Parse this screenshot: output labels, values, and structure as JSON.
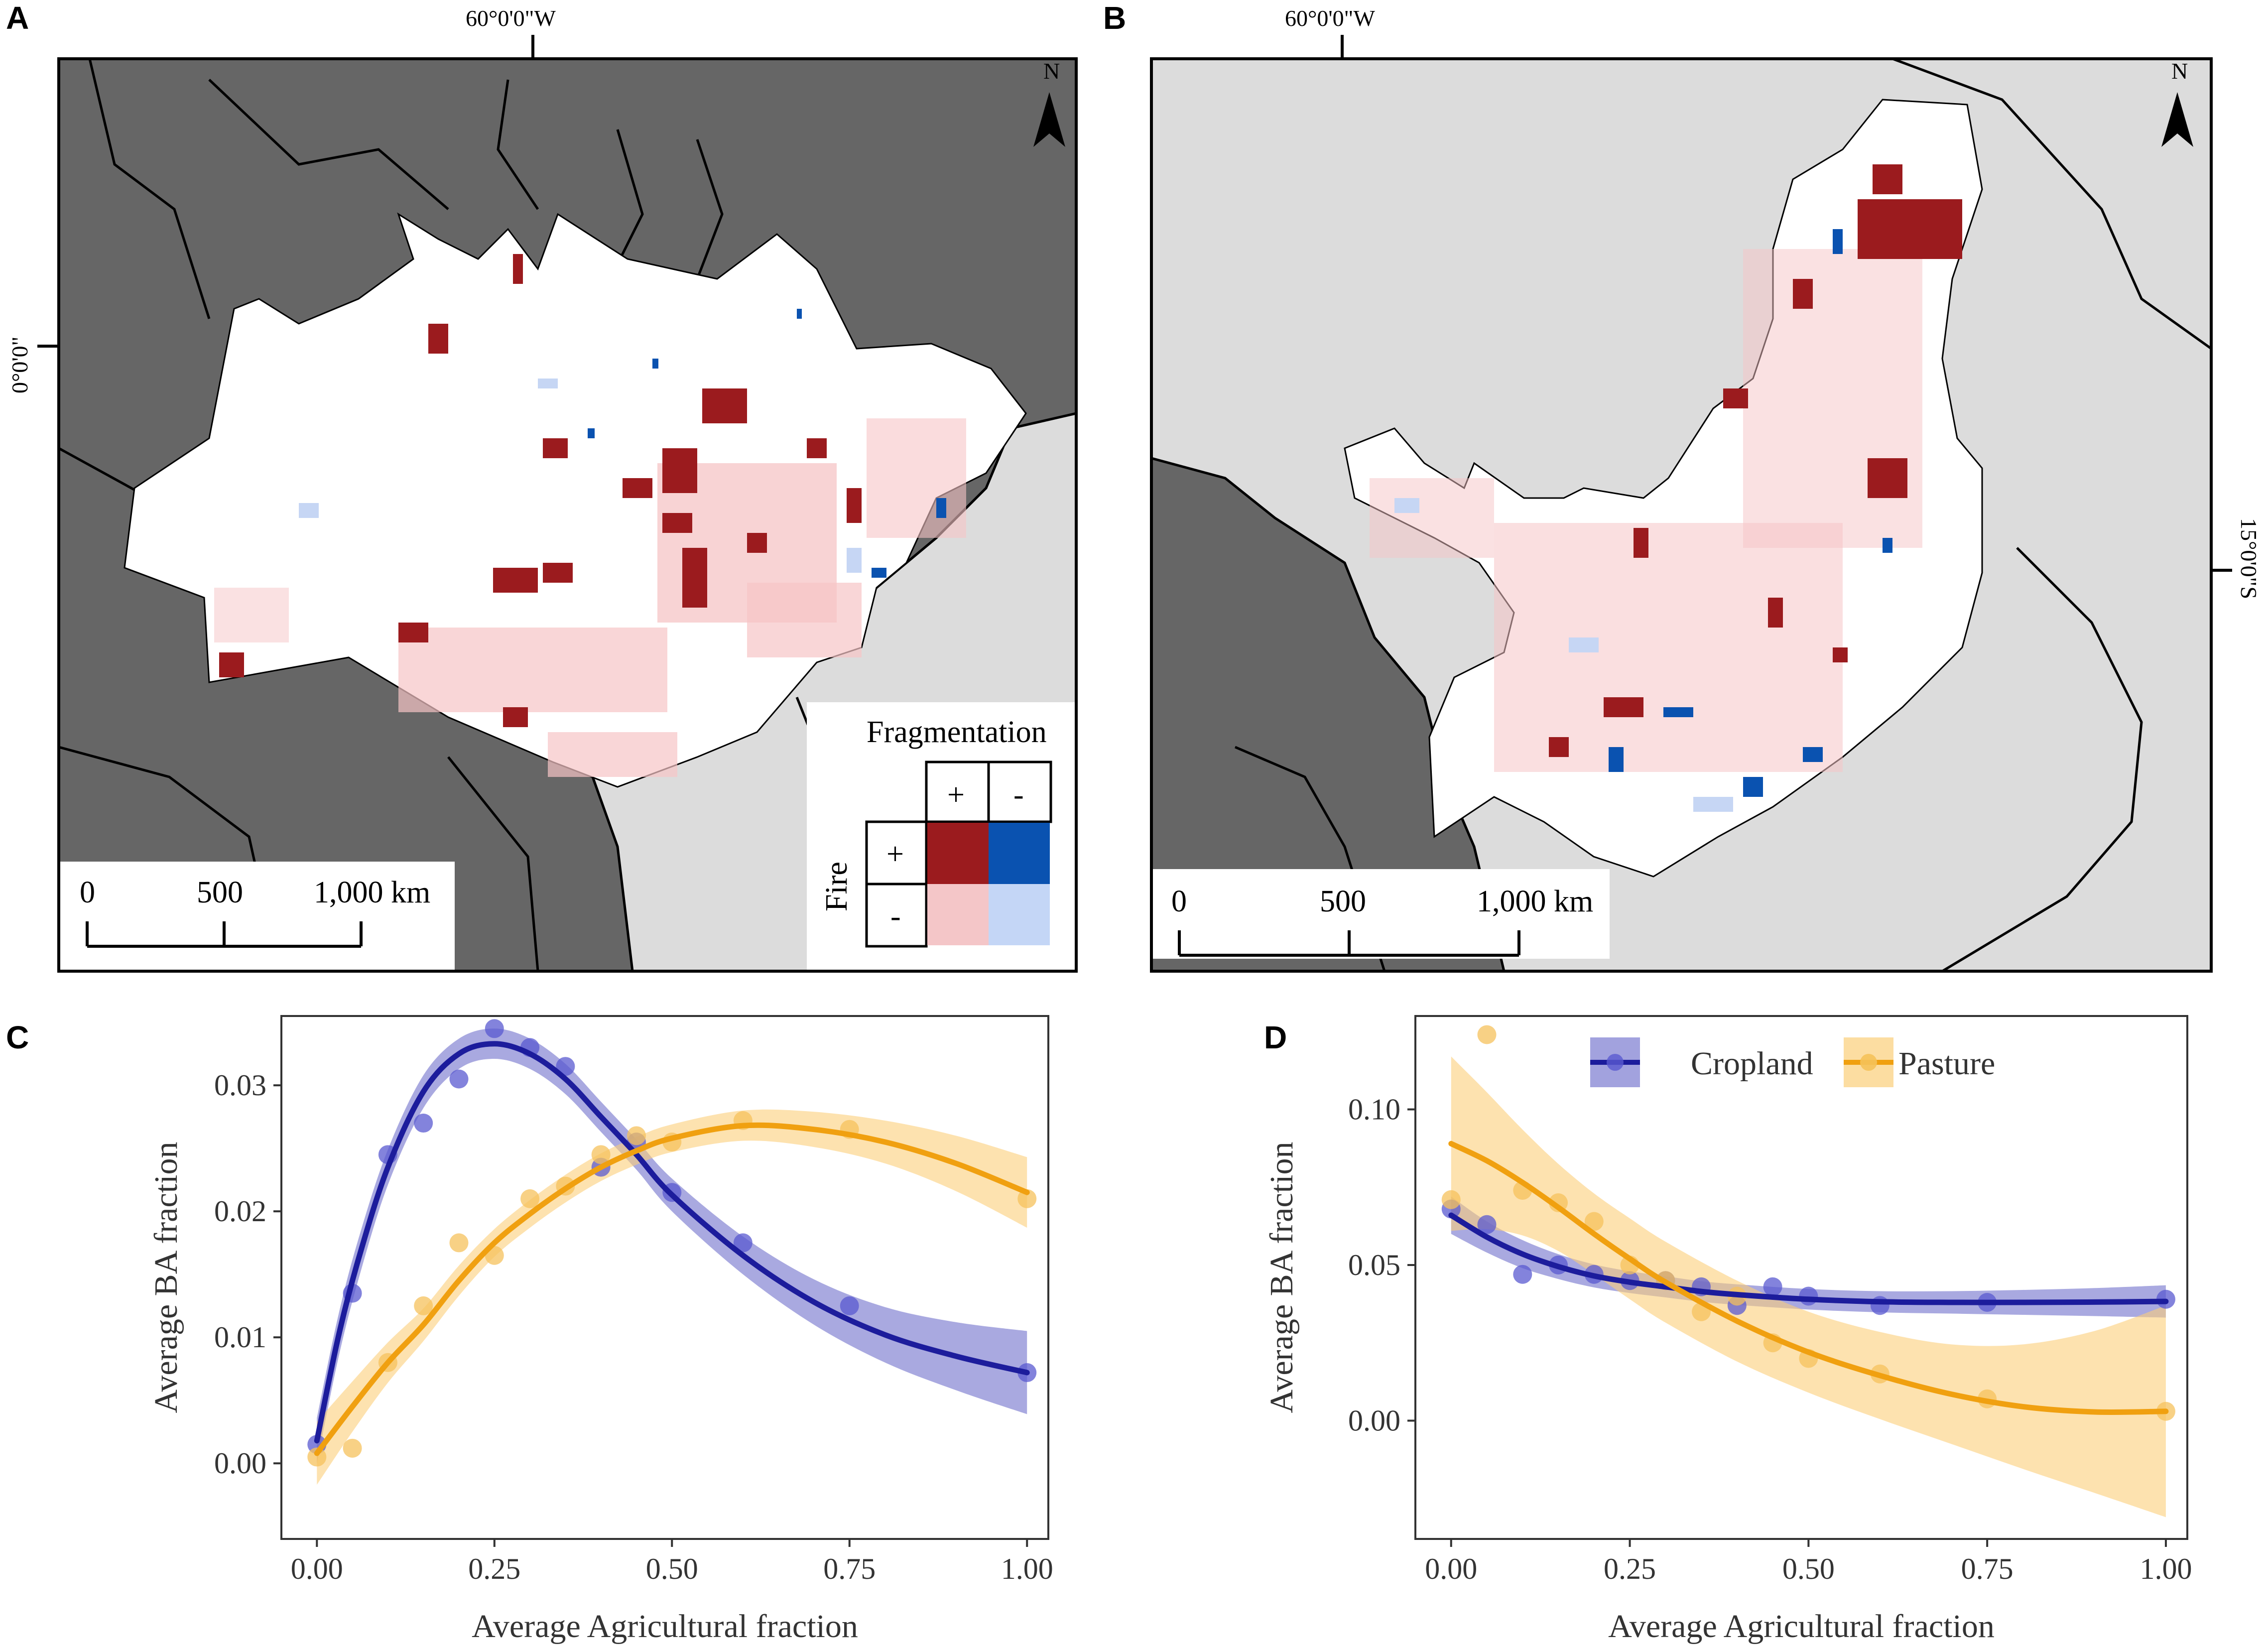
{
  "panels": {
    "a": {
      "label": "A",
      "top_coord": "60°0'0\"W",
      "side_coord": "0°0'0\""
    },
    "b": {
      "label": "B",
      "top_coord": "60°0'0\"W",
      "side_coord": "15°0'0\"S"
    },
    "c": {
      "label": "C"
    },
    "d": {
      "label": "D"
    }
  },
  "north_arrow": "N",
  "scale_bar": {
    "labels": [
      "0",
      "500",
      "1,000 km"
    ]
  },
  "legend_map": {
    "title": "Fragmentation",
    "col_plus": "+",
    "col_minus": "-",
    "row_title": "Fire",
    "row_plus": "+",
    "row_minus": "-",
    "colors": {
      "plus_plus": "#9b1b1e",
      "plus_minus": "#0a52b0",
      "minus_plus": "#f4c6c8",
      "minus_minus": "#c4d6f6"
    }
  },
  "map_colors": {
    "neighbor_dark": "#666666",
    "neighbor_light": "#dcdcdc",
    "region": "#ffffff",
    "fire_frag": "#9b1b1e",
    "fire_nofrag": "#0a52b0",
    "nofire_frag": "#f6c4c6",
    "nofire_nofrag": "#c6d6f4"
  },
  "chart_data": [
    {
      "panel": "C",
      "type": "line",
      "xlabel": "Average Agricultural fraction",
      "ylabel": "Average BA fraction",
      "xlim": [
        -0.05,
        1.03
      ],
      "ylim": [
        -0.006,
        0.0355
      ],
      "xticks": [
        "0.00",
        "0.25",
        "0.50",
        "0.75",
        "1.00"
      ],
      "yticks": [
        "0.00",
        "0.01",
        "0.02",
        "0.03"
      ],
      "series": [
        {
          "name": "Cropland",
          "color": "#1c1c9c",
          "points_x": [
            0.0,
            0.05,
            0.1,
            0.15,
            0.2,
            0.25,
            0.3,
            0.35,
            0.4,
            0.45,
            0.5,
            0.6,
            0.75,
            1.0
          ],
          "points_y": [
            0.0015,
            0.0135,
            0.0245,
            0.027,
            0.0305,
            0.0345,
            0.033,
            0.0315,
            0.0235,
            0.0255,
            0.0215,
            0.0175,
            0.0125,
            0.0072
          ],
          "fit_x": [
            0.0,
            0.03,
            0.06,
            0.1,
            0.15,
            0.2,
            0.25,
            0.3,
            0.35,
            0.4,
            0.45,
            0.5,
            0.6,
            0.7,
            0.8,
            0.9,
            1.0
          ],
          "fit_y": [
            0.0018,
            0.01,
            0.0165,
            0.0235,
            0.0295,
            0.0325,
            0.0333,
            0.0325,
            0.0305,
            0.0275,
            0.0245,
            0.0213,
            0.0165,
            0.0128,
            0.0102,
            0.0085,
            0.0072
          ],
          "band": [
            0.0018,
            0.0017,
            0.0016,
            0.0014,
            0.0013,
            0.0012,
            0.0012,
            0.0012,
            0.0012,
            0.0012,
            0.0012,
            0.0013,
            0.0015,
            0.0018,
            0.0022,
            0.0027,
            0.0033
          ]
        },
        {
          "name": "Pasture",
          "color": "#f0a010",
          "points_x": [
            0.0,
            0.05,
            0.1,
            0.15,
            0.2,
            0.25,
            0.3,
            0.35,
            0.4,
            0.45,
            0.5,
            0.6,
            0.75,
            1.0
          ],
          "points_y": [
            0.0005,
            0.0012,
            0.008,
            0.0125,
            0.0175,
            0.0165,
            0.021,
            0.022,
            0.0245,
            0.026,
            0.0255,
            0.0272,
            0.0265,
            0.021
          ],
          "fit_x": [
            0.0,
            0.05,
            0.1,
            0.15,
            0.2,
            0.25,
            0.3,
            0.35,
            0.4,
            0.45,
            0.5,
            0.6,
            0.7,
            0.8,
            0.9,
            1.0
          ],
          "fit_y": [
            0.0008,
            0.0045,
            0.008,
            0.011,
            0.0145,
            0.0175,
            0.0198,
            0.0218,
            0.0235,
            0.0248,
            0.0258,
            0.0268,
            0.0265,
            0.0255,
            0.0238,
            0.0215
          ],
          "band": [
            0.0025,
            0.002,
            0.0016,
            0.0013,
            0.0012,
            0.0011,
            0.0011,
            0.0011,
            0.0011,
            0.0011,
            0.0011,
            0.0012,
            0.0014,
            0.0017,
            0.0022,
            0.0028
          ]
        }
      ]
    },
    {
      "panel": "D",
      "type": "line",
      "xlabel": "Average Agricultural fraction",
      "ylabel": "Average BA fraction",
      "xlim": [
        -0.05,
        1.03
      ],
      "ylim": [
        -0.038,
        0.13
      ],
      "xticks": [
        "0.00",
        "0.25",
        "0.50",
        "0.75",
        "1.00"
      ],
      "yticks": [
        "0.00",
        "0.05",
        "0.10"
      ],
      "legend": {
        "position": "top-right",
        "entries": [
          "Cropland",
          "Pasture"
        ]
      },
      "series": [
        {
          "name": "Cropland",
          "color": "#1c1c9c",
          "points_x": [
            0.0,
            0.05,
            0.1,
            0.15,
            0.2,
            0.25,
            0.3,
            0.35,
            0.4,
            0.45,
            0.5,
            0.6,
            0.75,
            1.0
          ],
          "points_y": [
            0.068,
            0.063,
            0.047,
            0.05,
            0.047,
            0.045,
            0.045,
            0.043,
            0.037,
            0.043,
            0.04,
            0.037,
            0.038,
            0.039
          ],
          "fit_x": [
            0.0,
            0.05,
            0.1,
            0.15,
            0.2,
            0.25,
            0.3,
            0.35,
            0.4,
            0.5,
            0.6,
            0.7,
            0.8,
            0.9,
            1.0
          ],
          "fit_y": [
            0.066,
            0.059,
            0.0535,
            0.0495,
            0.0465,
            0.0445,
            0.043,
            0.0415,
            0.0405,
            0.039,
            0.0382,
            0.038,
            0.038,
            0.0381,
            0.0383
          ],
          "band": [
            0.006,
            0.005,
            0.0045,
            0.004,
            0.0037,
            0.0035,
            0.0034,
            0.0033,
            0.0033,
            0.0033,
            0.0034,
            0.0036,
            0.004,
            0.0045,
            0.0052
          ]
        },
        {
          "name": "Pasture",
          "color": "#f0a010",
          "points_x": [
            0.0,
            0.05,
            0.1,
            0.15,
            0.2,
            0.25,
            0.3,
            0.35,
            0.4,
            0.45,
            0.5,
            0.6,
            0.75,
            1.0
          ],
          "points_y": [
            0.071,
            0.124,
            0.074,
            0.07,
            0.064,
            0.05,
            0.045,
            0.035,
            0.04,
            0.025,
            0.02,
            0.015,
            0.007,
            0.003
          ],
          "fit_x": [
            0.0,
            0.05,
            0.1,
            0.15,
            0.2,
            0.25,
            0.3,
            0.4,
            0.5,
            0.6,
            0.7,
            0.8,
            0.9,
            1.0
          ],
          "fit_y": [
            0.089,
            0.0835,
            0.0765,
            0.0685,
            0.06,
            0.052,
            0.0445,
            0.032,
            0.022,
            0.0145,
            0.0085,
            0.0045,
            0.0028,
            0.003
          ],
          "band": [
            0.028,
            0.022,
            0.017,
            0.014,
            0.013,
            0.013,
            0.013,
            0.013,
            0.013,
            0.014,
            0.016,
            0.02,
            0.026,
            0.034
          ]
        }
      ]
    }
  ]
}
